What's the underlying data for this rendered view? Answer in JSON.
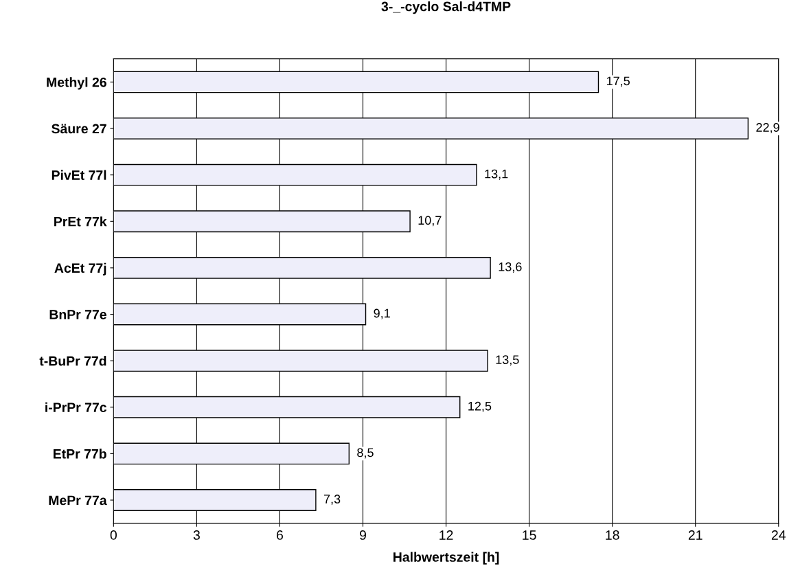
{
  "chart_data": {
    "type": "bar",
    "orientation": "horizontal",
    "title": "3-_-cyclo Sal-d4TMP",
    "xlabel": "Halbwertszeit [h]",
    "categories": [
      "Methyl 26",
      "Säure 27",
      "PivEt 77l",
      "PrEt 77k",
      "AcEt 77j",
      "BnPr 77e",
      "t-BuPr 77d",
      "i-PrPr 77c",
      "EtPr 77b",
      "MePr 77a"
    ],
    "values": [
      17.5,
      22.9,
      13.1,
      10.7,
      13.6,
      9.1,
      13.5,
      12.5,
      8.5,
      7.3
    ],
    "value_labels": [
      "17,5",
      "22,9",
      "13,1",
      "10,7",
      "13,6",
      "9,1",
      "13,5",
      "12,5",
      "8,5",
      "7,3"
    ],
    "color": "#eeeefa",
    "xlim": [
      0,
      24
    ],
    "xticks": [
      0,
      3,
      6,
      9,
      12,
      15,
      18,
      21,
      24
    ],
    "grid": "x"
  }
}
